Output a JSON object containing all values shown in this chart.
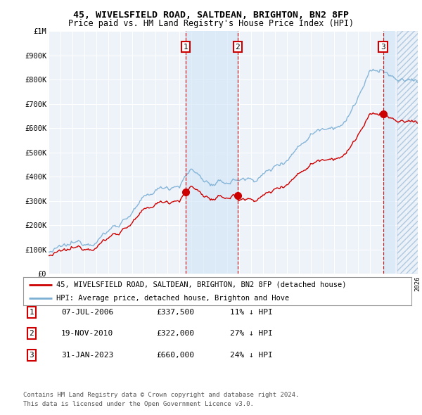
{
  "title1": "45, WIVELSFIELD ROAD, SALTDEAN, BRIGHTON, BN2 8FP",
  "title2": "Price paid vs. HM Land Registry's House Price Index (HPI)",
  "yticks": [
    0,
    100000,
    200000,
    300000,
    400000,
    500000,
    600000,
    700000,
    800000,
    900000,
    1000000
  ],
  "ytick_labels": [
    "£0",
    "£100K",
    "£200K",
    "£300K",
    "£400K",
    "£500K",
    "£600K",
    "£700K",
    "£800K",
    "£900K",
    "£1M"
  ],
  "hpi_color": "#7bafd4",
  "price_color": "#cc0000",
  "bg_color": "#ffffff",
  "plot_bg_color": "#eef3fa",
  "grid_color": "#ffffff",
  "vline_color": "#cc0000",
  "shade_color": "#d0e4f5",
  "transactions": [
    {
      "date_num": 2006.52,
      "price": 337500,
      "label": "1"
    },
    {
      "date_num": 2010.88,
      "price": 322000,
      "label": "2"
    },
    {
      "date_num": 2023.08,
      "price": 660000,
      "label": "3"
    }
  ],
  "legend_entries": [
    {
      "label": "45, WIVELSFIELD ROAD, SALTDEAN, BRIGHTON, BN2 8FP (detached house)",
      "color": "#cc0000"
    },
    {
      "label": "HPI: Average price, detached house, Brighton and Hove",
      "color": "#7bafd4"
    }
  ],
  "table_rows": [
    {
      "num": "1",
      "date": "07-JUL-2006",
      "price": "£337,500",
      "pct": "11% ↓ HPI"
    },
    {
      "num": "2",
      "date": "19-NOV-2010",
      "price": "£322,000",
      "pct": "27% ↓ HPI"
    },
    {
      "num": "3",
      "date": "31-JAN-2023",
      "price": "£660,000",
      "pct": "24% ↓ HPI"
    }
  ],
  "footnote1": "Contains HM Land Registry data © Crown copyright and database right 2024.",
  "footnote2": "This data is licensed under the Open Government Licence v3.0.",
  "xmin": 1995,
  "xmax": 2026,
  "ymin": 0,
  "ymax": 1000000,
  "hpi_anchor_years": [
    1995,
    1996,
    1997,
    1998,
    1999,
    2000,
    2001,
    2002,
    2003,
    2004,
    2005,
    2006,
    2007,
    2008,
    2009,
    2010,
    2011,
    2012,
    2013,
    2014,
    2015,
    2016,
    2017,
    2018,
    2019,
    2020,
    2021,
    2022,
    2023,
    2024,
    2025,
    2026
  ],
  "hpi_anchor_vals": [
    90000,
    100000,
    115000,
    130000,
    150000,
    180000,
    215000,
    255000,
    300000,
    340000,
    360000,
    375000,
    430000,
    390000,
    360000,
    375000,
    390000,
    390000,
    410000,
    440000,
    480000,
    530000,
    580000,
    610000,
    620000,
    630000,
    730000,
    820000,
    840000,
    800000,
    790000,
    800000
  ]
}
